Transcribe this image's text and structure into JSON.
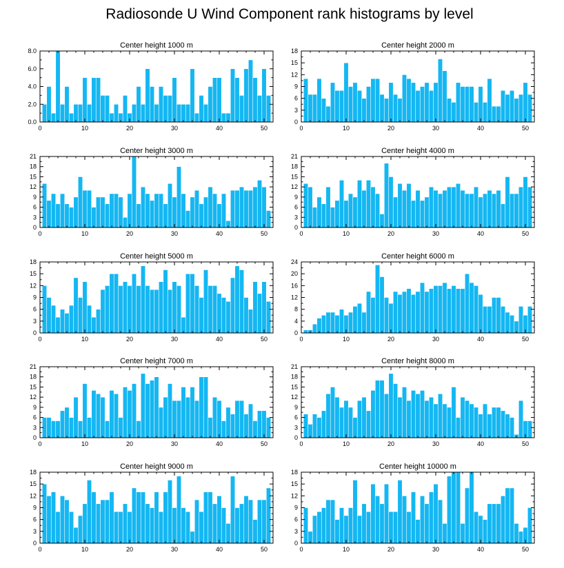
{
  "figure": {
    "title": "Radiosonde U Wind Component rank histograms by level"
  },
  "chart_data": [
    {
      "type": "bar",
      "title": "Center height 1000 m",
      "x": [
        1,
        2,
        3,
        4,
        5,
        6,
        7,
        8,
        9,
        10,
        11,
        12,
        13,
        14,
        15,
        16,
        17,
        18,
        19,
        20,
        21,
        22,
        23,
        24,
        25,
        26,
        27,
        28,
        29,
        30,
        31,
        32,
        33,
        34,
        35,
        36,
        37,
        38,
        39,
        40,
        41,
        42,
        43,
        44,
        45,
        46,
        47,
        48,
        49,
        50,
        51
      ],
      "values": [
        2,
        4,
        1,
        8,
        2,
        4,
        1,
        2,
        2,
        5,
        2,
        5,
        5,
        3,
        3,
        1,
        2,
        1,
        3,
        1,
        2,
        4,
        2,
        6,
        4,
        2,
        4,
        3,
        3,
        5,
        2,
        2,
        2,
        6,
        1,
        3,
        2,
        4,
        5,
        5,
        1,
        1,
        6,
        5,
        3,
        6,
        7,
        5,
        3,
        6,
        3
      ],
      "xlim": [
        0,
        52
      ],
      "ylim": [
        0,
        8
      ],
      "xticks": [
        0,
        10,
        20,
        30,
        40,
        50
      ],
      "xticklabels": [
        "0",
        "10",
        "20",
        "30",
        "40",
        "50"
      ],
      "yticks": [
        0,
        2,
        4,
        6,
        8
      ],
      "yticklabels": [
        "0.0",
        "2.0",
        "4.0",
        "6.0",
        "8.0"
      ],
      "ymajor": 2
    },
    {
      "type": "bar",
      "title": "Center height 2000 m",
      "x": [
        1,
        2,
        3,
        4,
        5,
        6,
        7,
        8,
        9,
        10,
        11,
        12,
        13,
        14,
        15,
        16,
        17,
        18,
        19,
        20,
        21,
        22,
        23,
        24,
        25,
        26,
        27,
        28,
        29,
        30,
        31,
        32,
        33,
        34,
        35,
        36,
        37,
        38,
        39,
        40,
        41,
        42,
        43,
        44,
        45,
        46,
        47,
        48,
        49,
        50,
        51
      ],
      "values": [
        11,
        7,
        7,
        11,
        6,
        4,
        10,
        8,
        8,
        15,
        9,
        10,
        8,
        6,
        9,
        11,
        11,
        7,
        6,
        10,
        7,
        6,
        12,
        11,
        10,
        8,
        9,
        10,
        8,
        10,
        16,
        13,
        6,
        5,
        10,
        9,
        9,
        9,
        5,
        9,
        5,
        11,
        4,
        4,
        8,
        7,
        8,
        6,
        7,
        10,
        7
      ],
      "xlim": [
        0,
        52
      ],
      "ylim": [
        0,
        18
      ],
      "xticks": [
        0,
        10,
        20,
        30,
        40,
        50
      ],
      "xticklabels": [
        "0",
        "10",
        "20",
        "30",
        "40",
        "50"
      ],
      "yticks": [
        0,
        3,
        6,
        9,
        12,
        15,
        18
      ],
      "yticklabels": [
        "0",
        "3",
        "6",
        "9",
        "12",
        "15",
        "18"
      ],
      "ymajor": 3
    },
    {
      "type": "bar",
      "title": "Center height 3000 m",
      "x": [
        1,
        2,
        3,
        4,
        5,
        6,
        7,
        8,
        9,
        10,
        11,
        12,
        13,
        14,
        15,
        16,
        17,
        18,
        19,
        20,
        21,
        22,
        23,
        24,
        25,
        26,
        27,
        28,
        29,
        30,
        31,
        32,
        33,
        34,
        35,
        36,
        37,
        38,
        39,
        40,
        41,
        42,
        43,
        44,
        45,
        46,
        47,
        48,
        49,
        50,
        51
      ],
      "values": [
        13,
        8,
        10,
        7,
        10,
        7,
        6,
        9,
        15,
        11,
        11,
        6,
        9,
        9,
        7,
        10,
        10,
        9,
        3,
        10,
        21,
        7,
        12,
        10,
        8,
        10,
        10,
        7,
        13,
        9,
        18,
        10,
        5,
        9,
        11,
        7,
        9,
        12,
        10,
        7,
        10,
        2,
        11,
        11,
        12,
        11,
        11,
        12,
        14,
        12,
        5
      ],
      "xlim": [
        0,
        52
      ],
      "ylim": [
        0,
        21
      ],
      "xticks": [
        0,
        10,
        20,
        30,
        40,
        50
      ],
      "xticklabels": [
        "0",
        "10",
        "20",
        "30",
        "40",
        "50"
      ],
      "yticks": [
        0,
        3,
        6,
        9,
        12,
        15,
        18,
        21
      ],
      "yticklabels": [
        "0",
        "3",
        "6",
        "9",
        "12",
        "15",
        "18",
        "21"
      ],
      "ymajor": 3
    },
    {
      "type": "bar",
      "title": "Center height 4000 m",
      "x": [
        1,
        2,
        3,
        4,
        5,
        6,
        7,
        8,
        9,
        10,
        11,
        12,
        13,
        14,
        15,
        16,
        17,
        18,
        19,
        20,
        21,
        22,
        23,
        24,
        25,
        26,
        27,
        28,
        29,
        30,
        31,
        32,
        33,
        34,
        35,
        36,
        37,
        38,
        39,
        40,
        41,
        42,
        43,
        44,
        45,
        46,
        47,
        48,
        49,
        50,
        51
      ],
      "values": [
        13,
        12,
        6,
        9,
        7,
        12,
        6,
        8,
        14,
        8,
        10,
        9,
        14,
        11,
        14,
        12,
        10,
        4,
        19,
        15,
        9,
        13,
        11,
        13,
        8,
        11,
        8,
        9,
        12,
        11,
        10,
        11,
        12,
        12,
        13,
        11,
        10,
        10,
        12,
        9,
        10,
        11,
        10,
        11,
        7,
        15,
        10,
        10,
        12,
        15,
        12
      ],
      "xlim": [
        0,
        52
      ],
      "ylim": [
        0,
        21
      ],
      "xticks": [
        0,
        10,
        20,
        30,
        40,
        50
      ],
      "xticklabels": [
        "0",
        "10",
        "20",
        "30",
        "40",
        "50"
      ],
      "yticks": [
        0,
        3,
        6,
        9,
        12,
        15,
        18,
        21
      ],
      "yticklabels": [
        "0",
        "3",
        "6",
        "9",
        "12",
        "15",
        "18",
        "21"
      ],
      "ymajor": 3
    },
    {
      "type": "bar",
      "title": "Center height 5000 m",
      "x": [
        1,
        2,
        3,
        4,
        5,
        6,
        7,
        8,
        9,
        10,
        11,
        12,
        13,
        14,
        15,
        16,
        17,
        18,
        19,
        20,
        21,
        22,
        23,
        24,
        25,
        26,
        27,
        28,
        29,
        30,
        31,
        32,
        33,
        34,
        35,
        36,
        37,
        38,
        39,
        40,
        41,
        42,
        43,
        44,
        45,
        46,
        47,
        48,
        49,
        50,
        51
      ],
      "values": [
        12,
        9,
        7,
        4,
        6,
        5,
        7,
        14,
        9,
        13,
        7,
        4,
        6,
        11,
        12,
        15,
        15,
        12,
        13,
        12,
        15,
        12,
        17,
        12,
        11,
        11,
        13,
        16,
        11,
        13,
        12,
        4,
        15,
        15,
        12,
        9,
        16,
        12,
        12,
        10,
        9,
        8,
        14,
        17,
        16,
        9,
        6,
        13,
        10,
        13,
        8
      ],
      "xlim": [
        0,
        52
      ],
      "ylim": [
        0,
        18
      ],
      "xticks": [
        0,
        10,
        20,
        30,
        40,
        50
      ],
      "xticklabels": [
        "0",
        "10",
        "20",
        "30",
        "40",
        "50"
      ],
      "yticks": [
        0,
        3,
        6,
        9,
        12,
        15,
        18
      ],
      "yticklabels": [
        "0",
        "3",
        "6",
        "9",
        "12",
        "15",
        "18"
      ],
      "ymajor": 3
    },
    {
      "type": "bar",
      "title": "Center height 6000 m",
      "x": [
        1,
        2,
        3,
        4,
        5,
        6,
        7,
        8,
        9,
        10,
        11,
        12,
        13,
        14,
        15,
        16,
        17,
        18,
        19,
        20,
        21,
        22,
        23,
        24,
        25,
        26,
        27,
        28,
        29,
        30,
        31,
        32,
        33,
        34,
        35,
        36,
        37,
        38,
        39,
        40,
        41,
        42,
        43,
        44,
        45,
        46,
        47,
        48,
        49,
        50,
        51
      ],
      "values": [
        1,
        1,
        3,
        5,
        6,
        7,
        7,
        6,
        8,
        6,
        7,
        9,
        10,
        7,
        14,
        12,
        23,
        19,
        12,
        10,
        14,
        13,
        14,
        15,
        13,
        14,
        17,
        14,
        15,
        16,
        16,
        17,
        15,
        16,
        15,
        15,
        20,
        17,
        16,
        13,
        9,
        9,
        12,
        12,
        9,
        7,
        6,
        4,
        9,
        6,
        9
      ],
      "xlim": [
        0,
        52
      ],
      "ylim": [
        0,
        24
      ],
      "xticks": [
        0,
        10,
        20,
        30,
        40,
        50
      ],
      "xticklabels": [
        "0",
        "10",
        "20",
        "30",
        "40",
        "50"
      ],
      "yticks": [
        0,
        4,
        8,
        12,
        16,
        20,
        24
      ],
      "yticklabels": [
        "0",
        "4",
        "8",
        "12",
        "16",
        "20",
        "24"
      ],
      "ymajor": 4
    },
    {
      "type": "bar",
      "title": "Center height 7000 m",
      "x": [
        1,
        2,
        3,
        4,
        5,
        6,
        7,
        8,
        9,
        10,
        11,
        12,
        13,
        14,
        15,
        16,
        17,
        18,
        19,
        20,
        21,
        22,
        23,
        24,
        25,
        26,
        27,
        28,
        29,
        30,
        31,
        32,
        33,
        34,
        35,
        36,
        37,
        38,
        39,
        40,
        41,
        42,
        43,
        44,
        45,
        46,
        47,
        48,
        49,
        50,
        51
      ],
      "values": [
        6,
        6,
        5,
        5,
        8,
        9,
        6,
        12,
        5,
        16,
        6,
        14,
        13,
        12,
        5,
        14,
        13,
        6,
        15,
        14,
        16,
        5,
        19,
        16,
        17,
        18,
        9,
        12,
        16,
        11,
        11,
        15,
        12,
        15,
        11,
        18,
        18,
        6,
        12,
        11,
        5,
        9,
        7,
        11,
        11,
        7,
        10,
        5,
        8,
        8,
        6
      ],
      "xlim": [
        0,
        52
      ],
      "ylim": [
        0,
        21
      ],
      "xticks": [
        0,
        10,
        20,
        30,
        40,
        50
      ],
      "xticklabels": [
        "0",
        "10",
        "20",
        "30",
        "40",
        "50"
      ],
      "yticks": [
        0,
        3,
        6,
        9,
        12,
        15,
        18,
        21
      ],
      "yticklabels": [
        "0",
        "3",
        "6",
        "9",
        "12",
        "15",
        "18",
        "21"
      ],
      "ymajor": 3
    },
    {
      "type": "bar",
      "title": "Center height 8000 m",
      "x": [
        1,
        2,
        3,
        4,
        5,
        6,
        7,
        8,
        9,
        10,
        11,
        12,
        13,
        14,
        15,
        16,
        17,
        18,
        19,
        20,
        21,
        22,
        23,
        24,
        25,
        26,
        27,
        28,
        29,
        30,
        31,
        32,
        33,
        34,
        35,
        36,
        37,
        38,
        39,
        40,
        41,
        42,
        43,
        44,
        45,
        46,
        47,
        48,
        49,
        50,
        51
      ],
      "values": [
        7,
        4,
        7,
        6,
        8,
        13,
        15,
        12,
        9,
        11,
        9,
        6,
        11,
        12,
        8,
        14,
        17,
        17,
        13,
        19,
        16,
        12,
        15,
        11,
        14,
        13,
        14,
        11,
        12,
        10,
        13,
        10,
        9,
        15,
        6,
        12,
        11,
        10,
        9,
        7,
        10,
        7,
        9,
        9,
        8,
        7,
        6,
        1,
        11,
        5,
        5
      ],
      "xlim": [
        0,
        52
      ],
      "ylim": [
        0,
        21
      ],
      "xticks": [
        0,
        10,
        20,
        30,
        40,
        50
      ],
      "xticklabels": [
        "0",
        "10",
        "20",
        "30",
        "40",
        "50"
      ],
      "yticks": [
        0,
        3,
        6,
        9,
        12,
        15,
        18,
        21
      ],
      "yticklabels": [
        "0",
        "3",
        "6",
        "9",
        "12",
        "15",
        "18",
        "21"
      ],
      "ymajor": 3
    },
    {
      "type": "bar",
      "title": "Center height 9000 m",
      "x": [
        1,
        2,
        3,
        4,
        5,
        6,
        7,
        8,
        9,
        10,
        11,
        12,
        13,
        14,
        15,
        16,
        17,
        18,
        19,
        20,
        21,
        22,
        23,
        24,
        25,
        26,
        27,
        28,
        29,
        30,
        31,
        32,
        33,
        34,
        35,
        36,
        37,
        38,
        39,
        40,
        41,
        42,
        43,
        44,
        45,
        46,
        47,
        48,
        49,
        50,
        51
      ],
      "values": [
        15,
        12,
        13,
        8,
        12,
        11,
        8,
        4,
        7,
        10,
        16,
        13,
        10,
        11,
        11,
        13,
        8,
        8,
        10,
        8,
        14,
        13,
        13,
        10,
        9,
        13,
        8,
        13,
        16,
        9,
        17,
        9,
        8,
        3,
        11,
        8,
        13,
        13,
        10,
        12,
        9,
        5,
        17,
        9,
        10,
        12,
        11,
        6,
        11,
        11,
        14
      ],
      "xlim": [
        0,
        52
      ],
      "ylim": [
        0,
        18
      ],
      "xticks": [
        0,
        10,
        20,
        30,
        40,
        50
      ],
      "xticklabels": [
        "0",
        "10",
        "20",
        "30",
        "40",
        "50"
      ],
      "yticks": [
        0,
        3,
        6,
        9,
        12,
        15,
        18
      ],
      "yticklabels": [
        "0",
        "3",
        "6",
        "9",
        "12",
        "15",
        "18"
      ],
      "ymajor": 3
    },
    {
      "type": "bar",
      "title": "Center height 10000 m",
      "x": [
        1,
        2,
        3,
        4,
        5,
        6,
        7,
        8,
        9,
        10,
        11,
        12,
        13,
        14,
        15,
        16,
        17,
        18,
        19,
        20,
        21,
        22,
        23,
        24,
        25,
        26,
        27,
        28,
        29,
        30,
        31,
        32,
        33,
        34,
        35,
        36,
        37,
        38,
        39,
        40,
        41,
        42,
        43,
        44,
        45,
        46,
        47,
        48,
        49,
        50,
        51
      ],
      "values": [
        9,
        3,
        7,
        8,
        9,
        11,
        11,
        6,
        9,
        7,
        9,
        16,
        7,
        10,
        8,
        15,
        12,
        10,
        15,
        8,
        8,
        16,
        12,
        8,
        13,
        6,
        12,
        10,
        13,
        15,
        11,
        5,
        17,
        18,
        18,
        5,
        14,
        18,
        8,
        7,
        6,
        10,
        10,
        10,
        12,
        14,
        14,
        5,
        3,
        4,
        9
      ],
      "xlim": [
        0,
        52
      ],
      "ylim": [
        0,
        18
      ],
      "xticks": [
        0,
        10,
        20,
        30,
        40,
        50
      ],
      "xticklabels": [
        "0",
        "10",
        "20",
        "30",
        "40",
        "50"
      ],
      "yticks": [
        0,
        3,
        6,
        9,
        12,
        15,
        18
      ],
      "yticklabels": [
        "0",
        "3",
        "6",
        "9",
        "12",
        "15",
        "18"
      ],
      "ymajor": 3
    }
  ]
}
